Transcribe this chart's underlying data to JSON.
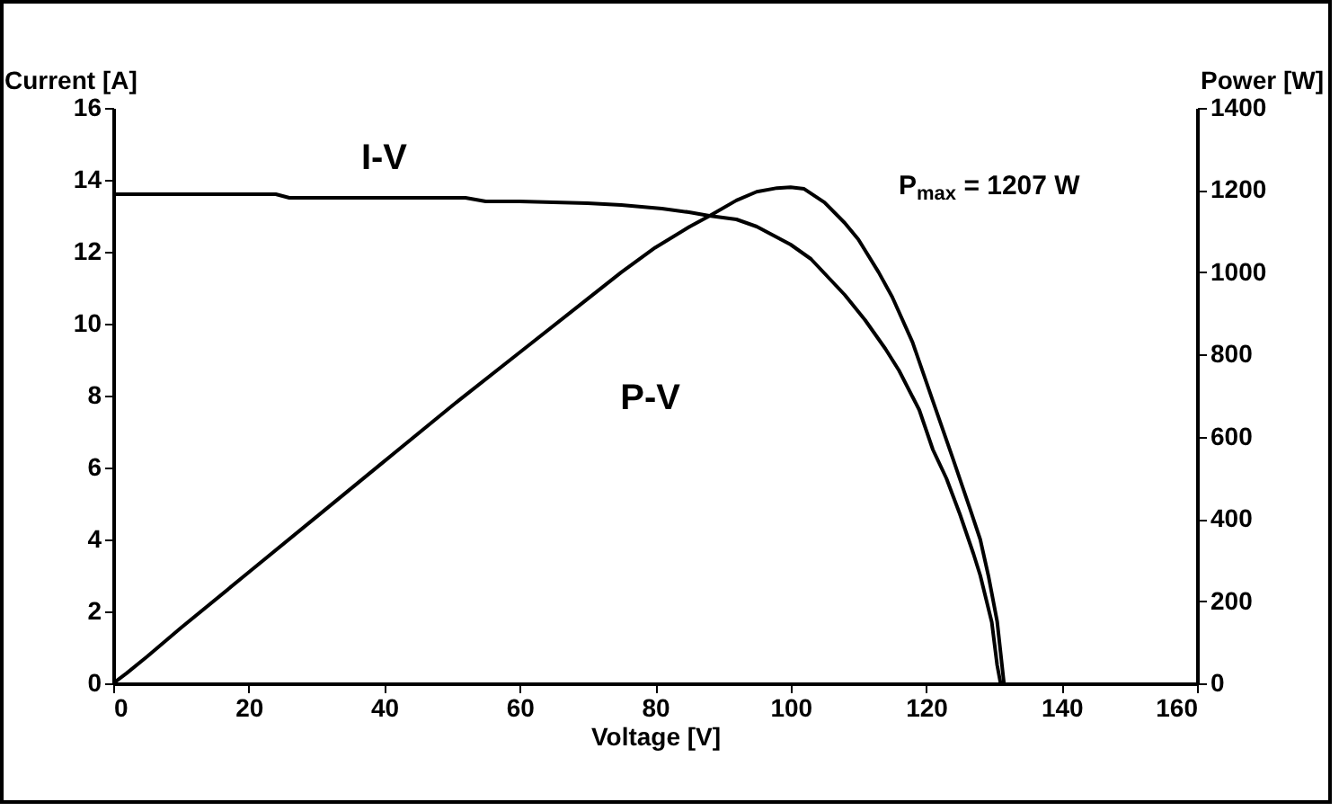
{
  "chart_data": {
    "type": "line",
    "xlabel": "Voltage [V]",
    "ylabel": "Current [A]",
    "y2label": "Power [W]",
    "xlim": [
      0,
      160
    ],
    "xticks": [
      0,
      20,
      40,
      60,
      80,
      100,
      120,
      140,
      160
    ],
    "ylim": [
      0,
      16
    ],
    "yticks": [
      0,
      2,
      4,
      6,
      8,
      10,
      12,
      14,
      16
    ],
    "y2lim": [
      0,
      1400
    ],
    "y2ticks": [
      0,
      200,
      400,
      600,
      800,
      1000,
      1200,
      1400
    ],
    "grid": false,
    "legend": false,
    "marker": "none",
    "line_style": "solid",
    "annotations": [
      "P$_{max}$ = 1207 W"
    ],
    "series": [
      {
        "name": "I-V",
        "color": "#000000",
        "x": [
          0,
          10,
          20,
          24,
          26,
          40,
          52,
          55,
          60,
          70,
          75,
          81,
          85,
          88,
          92,
          95,
          100,
          103,
          105,
          108,
          111,
          114,
          116,
          119,
          121,
          123,
          125,
          127,
          128,
          129.7,
          130.5,
          131
        ],
        "values": [
          13.6,
          13.6,
          13.6,
          13.6,
          13.5,
          13.5,
          13.5,
          13.4,
          13.4,
          13.35,
          13.3,
          13.2,
          13.1,
          13.0,
          12.9,
          12.7,
          12.2,
          11.8,
          11.4,
          10.8,
          10.1,
          9.3,
          8.7,
          7.6,
          6.5,
          5.7,
          4.7,
          3.6,
          3.0,
          1.7,
          0.5,
          0
        ]
      },
      {
        "name": "P-V",
        "color": "#000000",
        "axis": "y2",
        "x": [
          0,
          2,
          5,
          10,
          20,
          30,
          40,
          50,
          60,
          70,
          75,
          80,
          85,
          88,
          92,
          95,
          98,
          100,
          102,
          105,
          108,
          110,
          113,
          115,
          118,
          121,
          124,
          126.5,
          128,
          129.2,
          130.5,
          131.5
        ],
        "values": [
          0,
          25,
          65,
          135,
          270,
          405,
          540,
          675,
          805,
          935,
          1000,
          1060,
          1110,
          1137,
          1175,
          1196,
          1205,
          1207,
          1203,
          1170,
          1120,
          1080,
          1000,
          940,
          830,
          687,
          545,
          424,
          350,
          262,
          150,
          0
        ]
      }
    ]
  }
}
